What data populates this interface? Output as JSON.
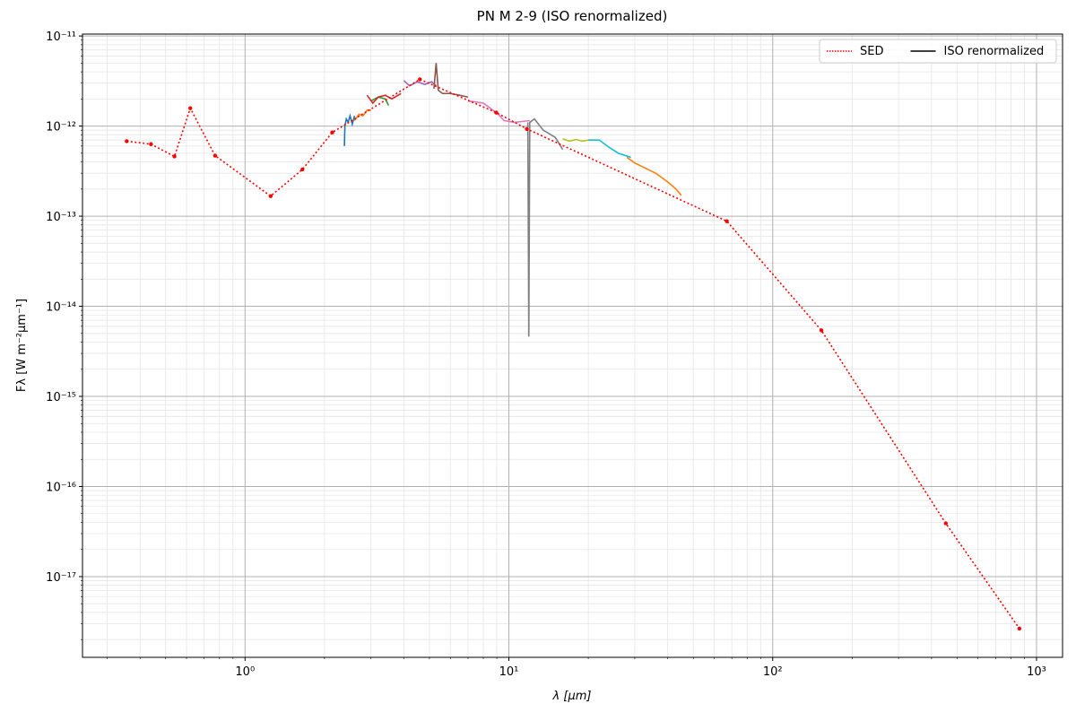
{
  "chart_data": {
    "type": "line",
    "title": "PN M 2-9 (ISO renormalized)",
    "x_label": "λ [μm]",
    "y_label": "Fλ [W m⁻²μm⁻¹]",
    "log_x": true,
    "log_y": true,
    "grid": true,
    "minor_grid": true,
    "legend": "upper right",
    "xlim": [
      0.242,
      1255
    ],
    "ylim": [
      1.27e-18,
      1.05e-11
    ],
    "xticks": [
      {
        "value": 1,
        "label": "10⁰"
      },
      {
        "value": 10,
        "label": "10¹"
      },
      {
        "value": 100,
        "label": "10²"
      },
      {
        "value": 1000,
        "label": "10³"
      }
    ],
    "yticks": [
      {
        "value": 1e-17,
        "label": "10⁻¹⁷"
      },
      {
        "value": 1e-16,
        "label": "10⁻¹⁶"
      },
      {
        "value": 1e-15,
        "label": "10⁻¹⁵"
      },
      {
        "value": 1e-14,
        "label": "10⁻¹⁴"
      },
      {
        "value": 1e-13,
        "label": "10⁻¹³"
      },
      {
        "value": 1e-12,
        "label": "10⁻¹²"
      },
      {
        "value": 1e-11,
        "label": "10⁻¹¹"
      }
    ],
    "series": [
      {
        "name": "SED",
        "color": "#ff0000",
        "style": "dotted",
        "x": [
          0.356,
          0.44,
          0.54,
          0.62,
          0.77,
          1.25,
          1.65,
          2.14,
          4.6,
          8.96,
          11.7,
          67,
          153,
          453,
          861
        ],
        "values": [
          6.8e-13,
          6.3e-13,
          4.6e-13,
          1.58e-12,
          4.7e-13,
          1.67e-13,
          3.3e-13,
          8.5e-13,
          3.3e-12,
          1.41e-12,
          9.3e-13,
          8.8e-14,
          5.4e-15,
          3.9e-17,
          2.65e-18
        ]
      },
      {
        "name": "ISO renormalized",
        "color": "#000000",
        "style": "solid",
        "segments": [
          {
            "color": "#1f77b4",
            "x": [
              2.38,
              2.39,
              2.42,
              2.46,
              2.5,
              2.55,
              2.6
            ],
            "values": [
              6e-13,
              1e-12,
              1.2e-12,
              1.1e-12,
              1.3e-12,
              1.05e-12,
              1.3e-12
            ]
          },
          {
            "color": "#ff7f0e",
            "x": [
              2.6,
              2.7,
              2.8,
              2.9,
              3.0
            ],
            "values": [
              1.15e-12,
              1.35e-12,
              1.3e-12,
              1.5e-12,
              1.5e-12
            ]
          },
          {
            "color": "#2ca02c",
            "x": [
              3.0,
              3.2,
              3.4,
              3.5
            ],
            "values": [
              1.9e-12,
              2.1e-12,
              2e-12,
              1.7e-12
            ]
          },
          {
            "color": "#d62728",
            "x": [
              2.9,
              3.05,
              3.2,
              3.4,
              3.6,
              3.9
            ],
            "values": [
              2.2e-12,
              1.8e-12,
              2.1e-12,
              2.2e-12,
              2e-12,
              2.3e-12
            ]
          },
          {
            "color": "#9467bd",
            "x": [
              4.0,
              4.2,
              4.5,
              4.8,
              5.1,
              5.3
            ],
            "values": [
              3.2e-12,
              2.8e-12,
              3.1e-12,
              2.9e-12,
              3.1e-12,
              2.8e-12
            ]
          },
          {
            "color": "#8c564b",
            "x": [
              5.2,
              5.3,
              5.4,
              5.6,
              6.0,
              6.5,
              7.0
            ],
            "values": [
              2.6e-12,
              5e-12,
              2.5e-12,
              2.3e-12,
              2.3e-12,
              2.2e-12,
              2.1e-12
            ]
          },
          {
            "color": "#e377c2",
            "x": [
              7.0,
              8.0,
              9.0,
              9.6,
              10.5,
              12.0
            ],
            "values": [
              1.9e-12,
              1.8e-12,
              1.4e-12,
              1.15e-12,
              1.1e-12,
              1.15e-12
            ]
          },
          {
            "color": "#7f7f7f",
            "x": [
              11.8,
              11.9,
              12.0,
              12.5,
              13.5,
              15.0,
              16.0
            ],
            "values": [
              1.1e-12,
              4.6e-15,
              1.1e-12,
              1.2e-12,
              9e-13,
              7.5e-13,
              5.5e-13
            ]
          },
          {
            "color": "#bcbd22",
            "x": [
              16.0,
              17.0,
              18.0,
              19.0,
              20.0
            ],
            "values": [
              7.2e-13,
              6.8e-13,
              7.1e-13,
              6.8e-13,
              7e-13
            ]
          },
          {
            "color": "#17becf",
            "x": [
              20.0,
              22.0,
              24.0,
              26.0,
              29.0
            ],
            "values": [
              7e-13,
              7e-13,
              5.8e-13,
              5e-13,
              4.5e-13
            ]
          },
          {
            "color": "#ff7f0e",
            "x": [
              28.0,
              30.0,
              33.0,
              36.0,
              40.0,
              43.0,
              45.0
            ],
            "values": [
              4.5e-13,
              3.9e-13,
              3.4e-13,
              3e-13,
              2.4e-13,
              2e-13,
              1.7e-13
            ]
          }
        ]
      }
    ]
  }
}
